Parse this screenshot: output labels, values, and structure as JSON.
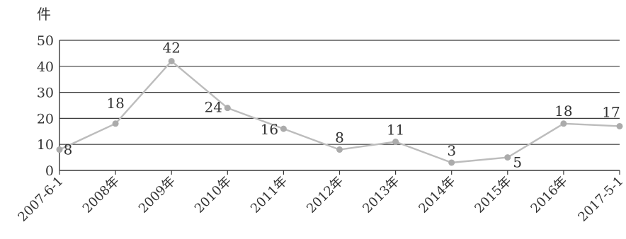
{
  "chart_data": {
    "type": "line",
    "unit_label": "件",
    "categories": [
      "2007-6-1",
      "2008年",
      "2009年",
      "2010年",
      "2011年",
      "2012年",
      "2013年",
      "2014年",
      "2015年",
      "2016年",
      "2017-5-1"
    ],
    "values": [
      8,
      18,
      42,
      24,
      16,
      8,
      11,
      3,
      5,
      18,
      17
    ],
    "ylim": [
      0,
      50
    ],
    "yticks": [
      0,
      10,
      20,
      30,
      40,
      50
    ],
    "grid": true,
    "legend": "none",
    "colors": {
      "line": "#bcbcbc",
      "marker": "#ababab",
      "grid": "#3a3a3a",
      "axis": "#3a3a3a",
      "text": "#333333"
    }
  }
}
